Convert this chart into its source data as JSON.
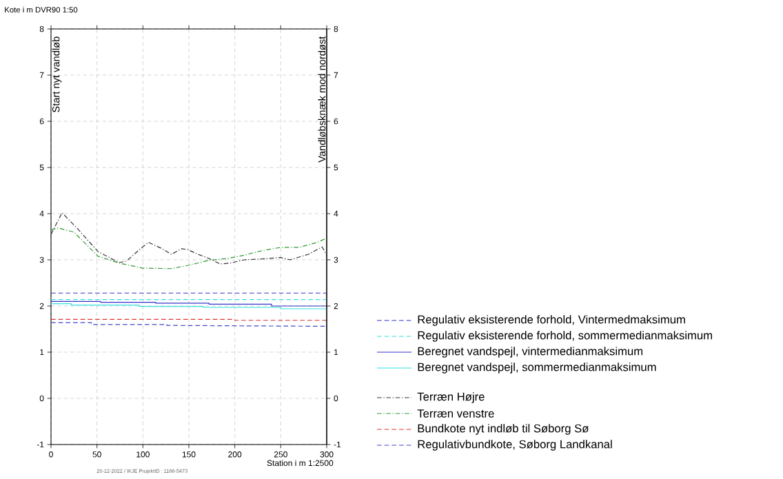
{
  "chart_data": {
    "type": "line",
    "xlabel": "Station i m   1:2500",
    "ylabel": "Kote i m DVR90 1:50",
    "xlim": [
      0,
      300
    ],
    "xticks": [
      0,
      50,
      100,
      150,
      200,
      250,
      300
    ],
    "ylim": [
      -1,
      8
    ],
    "yticks": [
      -1,
      0,
      1,
      2,
      3,
      4,
      5,
      6,
      7,
      8
    ],
    "y2lim": [
      -1,
      8
    ],
    "y2ticks": [
      -1,
      0,
      1,
      2,
      3,
      4,
      5,
      6,
      7,
      8
    ],
    "grid": true,
    "legend": "bottom right",
    "series": [
      {
        "name": "Regulativ eksisterende forhold, Vintermedmaksimum",
        "color": "#3333cc",
        "line_style": "dashed",
        "x": [
          0,
          300
        ],
        "values": [
          2.28,
          2.28
        ]
      },
      {
        "name": "Regulativ eksisterende forhold, sommermedianmaksimum",
        "color": "#33dddd",
        "line_style": "dashed",
        "x": [
          0,
          300
        ],
        "values": [
          2.14,
          2.14
        ]
      },
      {
        "name": "Beregnet vandspejl, vintermedianmaksimum",
        "color": "#3333cc",
        "line_style": "solid",
        "x": [
          0,
          54,
          54,
          114,
          114,
          172,
          172,
          240,
          240,
          300
        ],
        "values": [
          2.1,
          2.1,
          2.08,
          2.08,
          2.06,
          2.06,
          2.04,
          2.04,
          2.0,
          2.0
        ]
      },
      {
        "name": "Beregnet vandspejl, sommermedianmaksimum",
        "color": "#33e0e0",
        "line_style": "solid",
        "x": [
          0,
          22,
          22,
          96,
          96,
          166,
          166,
          250,
          250,
          300
        ],
        "values": [
          2.05,
          2.05,
          2.02,
          2.02,
          1.99,
          1.99,
          1.97,
          1.97,
          1.94,
          1.94
        ]
      },
      {
        "name": "Terræn Højre",
        "color": "#333333",
        "line_style": "dashdot",
        "x": [
          0,
          12,
          30,
          51,
          74,
          82,
          95,
          106,
          120,
          131,
          142,
          149,
          160,
          172,
          184,
          195,
          210,
          230,
          250,
          260,
          280,
          295,
          300
        ],
        "values": [
          3.55,
          4.02,
          3.65,
          3.18,
          2.94,
          2.97,
          3.2,
          3.38,
          3.25,
          3.12,
          3.24,
          3.22,
          3.12,
          3.03,
          2.91,
          2.93,
          3.0,
          3.02,
          3.05,
          3.0,
          3.12,
          3.28,
          3.1
        ]
      },
      {
        "name": "Terræn venstre",
        "color": "#339933",
        "line_style": "dashdot",
        "x": [
          0,
          8,
          25,
          51,
          74,
          100,
          131,
          149,
          172,
          192,
          210,
          230,
          250,
          270,
          290,
          300
        ],
        "values": [
          3.65,
          3.69,
          3.6,
          3.08,
          2.93,
          2.82,
          2.81,
          2.88,
          2.99,
          3.03,
          3.1,
          3.2,
          3.27,
          3.27,
          3.38,
          3.47
        ]
      },
      {
        "name": "Bundkote nyt indløb til Søborg Sø",
        "color": "#dd3333",
        "line_style": "dashed",
        "x": [
          0,
          200,
          200,
          300
        ],
        "values": [
          1.71,
          1.71,
          1.69,
          1.69
        ]
      },
      {
        "name": "Regulativbundkote, Søborg Landkanal",
        "color": "#4444cc",
        "line_style": "dashed",
        "x": [
          0,
          44,
          44,
          126,
          126,
          300
        ],
        "values": [
          1.64,
          1.64,
          1.6,
          1.6,
          1.58,
          1.56
        ]
      }
    ],
    "annotations": [
      "Start nyt vandløb",
      "Vandløbsknæk mod nordøst",
      "20-12-2022 / IKJE   ProjektID : 1166-5473"
    ]
  }
}
